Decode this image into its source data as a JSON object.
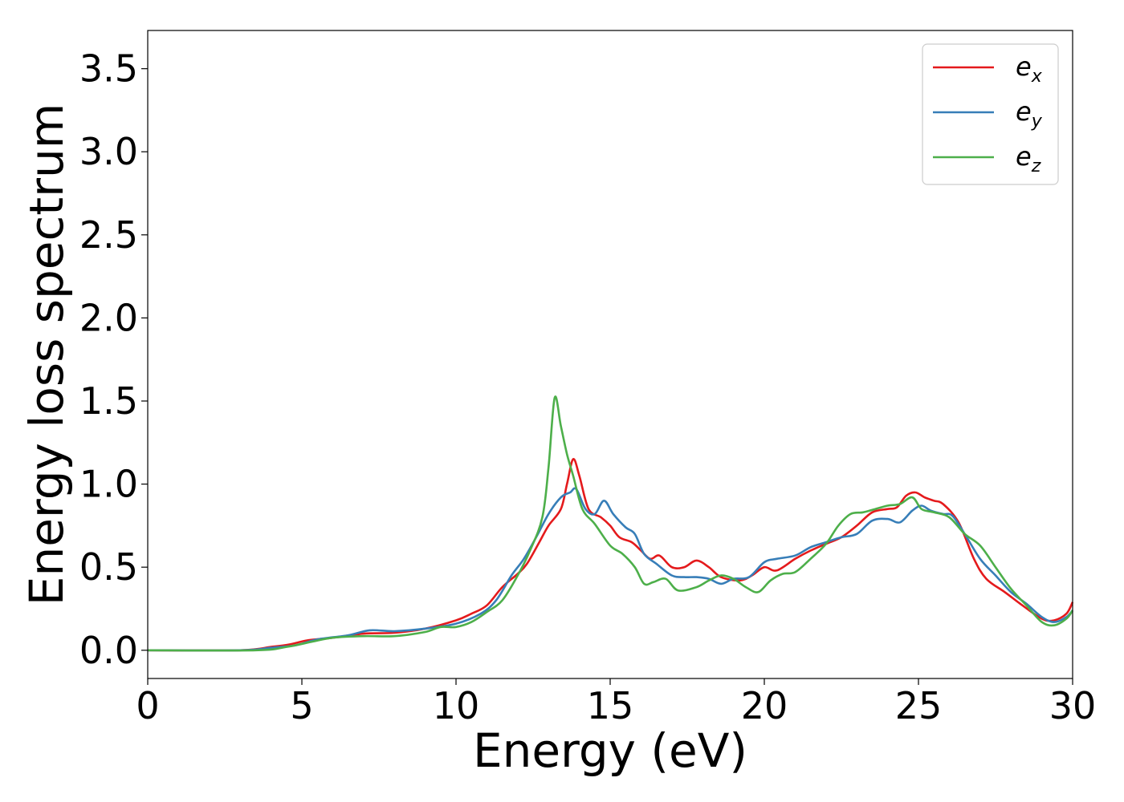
{
  "chart_data": {
    "type": "line",
    "title": "",
    "xlabel": "Energy (eV)",
    "ylabel": "Energy loss spectrum",
    "xlim": [
      0,
      30
    ],
    "ylim": [
      -0.17,
      3.73
    ],
    "xticks": [
      0,
      5,
      10,
      15,
      20,
      25,
      30
    ],
    "xtick_labels": [
      "0",
      "5",
      "10",
      "15",
      "20",
      "25",
      "30"
    ],
    "yticks": [
      0.0,
      0.5,
      1.0,
      1.5,
      2.0,
      2.5,
      3.0,
      3.5
    ],
    "ytick_labels": [
      "0.0",
      "0.5",
      "1.0",
      "1.5",
      "2.0",
      "2.5",
      "3.0",
      "3.5"
    ],
    "grid": false,
    "legend_position": "top-right",
    "series": [
      {
        "name_base": "e",
        "name_sub": "x",
        "color": "#e41a1c",
        "points": [
          [
            0,
            0
          ],
          [
            3,
            0.0
          ],
          [
            4,
            0.02
          ],
          [
            4.6,
            0.035
          ],
          [
            5.2,
            0.06
          ],
          [
            6,
            0.075
          ],
          [
            7,
            0.1
          ],
          [
            8,
            0.105
          ],
          [
            9,
            0.13
          ],
          [
            10,
            0.18
          ],
          [
            10.5,
            0.22
          ],
          [
            11,
            0.27
          ],
          [
            11.5,
            0.38
          ],
          [
            12,
            0.46
          ],
          [
            12.3,
            0.52
          ],
          [
            12.7,
            0.65
          ],
          [
            13,
            0.75
          ],
          [
            13.4,
            0.85
          ],
          [
            13.6,
            1.0
          ],
          [
            13.8,
            1.15
          ],
          [
            14,
            1.05
          ],
          [
            14.3,
            0.85
          ],
          [
            14.7,
            0.8
          ],
          [
            15,
            0.75
          ],
          [
            15.3,
            0.68
          ],
          [
            15.7,
            0.65
          ],
          [
            16,
            0.6
          ],
          [
            16.3,
            0.55
          ],
          [
            16.6,
            0.57
          ],
          [
            17,
            0.5
          ],
          [
            17.4,
            0.5
          ],
          [
            17.8,
            0.54
          ],
          [
            18.2,
            0.5
          ],
          [
            18.6,
            0.44
          ],
          [
            19.2,
            0.42
          ],
          [
            19.6,
            0.45
          ],
          [
            20,
            0.5
          ],
          [
            20.4,
            0.48
          ],
          [
            21,
            0.55
          ],
          [
            21.5,
            0.6
          ],
          [
            22,
            0.64
          ],
          [
            22.5,
            0.68
          ],
          [
            23,
            0.75
          ],
          [
            23.5,
            0.83
          ],
          [
            24,
            0.85
          ],
          [
            24.3,
            0.86
          ],
          [
            24.6,
            0.93
          ],
          [
            24.9,
            0.95
          ],
          [
            25.2,
            0.92
          ],
          [
            25.5,
            0.9
          ],
          [
            25.8,
            0.88
          ],
          [
            26.3,
            0.77
          ],
          [
            26.8,
            0.55
          ],
          [
            27.2,
            0.43
          ],
          [
            27.8,
            0.35
          ],
          [
            28.3,
            0.28
          ],
          [
            29,
            0.19
          ],
          [
            29.4,
            0.18
          ],
          [
            29.8,
            0.22
          ],
          [
            30,
            0.29
          ]
        ]
      },
      {
        "name_base": "e",
        "name_sub": "y",
        "color": "#377eb8",
        "points": [
          [
            0,
            0
          ],
          [
            3,
            0.0
          ],
          [
            4,
            0.015
          ],
          [
            4.8,
            0.03
          ],
          [
            5.5,
            0.065
          ],
          [
            6.5,
            0.09
          ],
          [
            7.2,
            0.12
          ],
          [
            8,
            0.115
          ],
          [
            9,
            0.13
          ],
          [
            10,
            0.16
          ],
          [
            10.8,
            0.22
          ],
          [
            11.3,
            0.3
          ],
          [
            11.8,
            0.45
          ],
          [
            12.2,
            0.55
          ],
          [
            12.6,
            0.68
          ],
          [
            13,
            0.82
          ],
          [
            13.4,
            0.92
          ],
          [
            13.7,
            0.95
          ],
          [
            13.9,
            0.97
          ],
          [
            14.2,
            0.85
          ],
          [
            14.5,
            0.82
          ],
          [
            14.8,
            0.9
          ],
          [
            15.1,
            0.82
          ],
          [
            15.5,
            0.74
          ],
          [
            15.8,
            0.7
          ],
          [
            16.1,
            0.58
          ],
          [
            16.5,
            0.52
          ],
          [
            17,
            0.45
          ],
          [
            17.4,
            0.44
          ],
          [
            17.8,
            0.44
          ],
          [
            18.2,
            0.43
          ],
          [
            18.6,
            0.4
          ],
          [
            19,
            0.43
          ],
          [
            19.5,
            0.44
          ],
          [
            20,
            0.53
          ],
          [
            20.4,
            0.55
          ],
          [
            21,
            0.57
          ],
          [
            21.5,
            0.62
          ],
          [
            22,
            0.65
          ],
          [
            22.5,
            0.68
          ],
          [
            23,
            0.7
          ],
          [
            23.5,
            0.78
          ],
          [
            24,
            0.79
          ],
          [
            24.4,
            0.77
          ],
          [
            24.8,
            0.84
          ],
          [
            25.1,
            0.87
          ],
          [
            25.4,
            0.84
          ],
          [
            25.8,
            0.82
          ],
          [
            26.1,
            0.81
          ],
          [
            26.5,
            0.7
          ],
          [
            27,
            0.55
          ],
          [
            27.5,
            0.45
          ],
          [
            28,
            0.35
          ],
          [
            28.5,
            0.28
          ],
          [
            29,
            0.2
          ],
          [
            29.4,
            0.17
          ],
          [
            29.8,
            0.2
          ],
          [
            30,
            0.24
          ]
        ]
      },
      {
        "name_base": "e",
        "name_sub": "z",
        "color": "#4daf4a",
        "points": [
          [
            0,
            0
          ],
          [
            3.5,
            0.0
          ],
          [
            4.5,
            0.02
          ],
          [
            5.3,
            0.05
          ],
          [
            6,
            0.075
          ],
          [
            7,
            0.085
          ],
          [
            8,
            0.085
          ],
          [
            9,
            0.11
          ],
          [
            9.5,
            0.14
          ],
          [
            10,
            0.14
          ],
          [
            10.5,
            0.17
          ],
          [
            11,
            0.23
          ],
          [
            11.5,
            0.3
          ],
          [
            12,
            0.45
          ],
          [
            12.4,
            0.6
          ],
          [
            12.8,
            0.8
          ],
          [
            13,
            1.1
          ],
          [
            13.2,
            1.52
          ],
          [
            13.4,
            1.35
          ],
          [
            13.6,
            1.18
          ],
          [
            13.8,
            1.05
          ],
          [
            14.1,
            0.85
          ],
          [
            14.5,
            0.76
          ],
          [
            15,
            0.63
          ],
          [
            15.4,
            0.58
          ],
          [
            15.8,
            0.5
          ],
          [
            16.1,
            0.4
          ],
          [
            16.4,
            0.41
          ],
          [
            16.8,
            0.43
          ],
          [
            17.2,
            0.36
          ],
          [
            17.8,
            0.38
          ],
          [
            18.2,
            0.42
          ],
          [
            18.6,
            0.45
          ],
          [
            19,
            0.43
          ],
          [
            19.4,
            0.38
          ],
          [
            19.8,
            0.35
          ],
          [
            20.2,
            0.42
          ],
          [
            20.6,
            0.46
          ],
          [
            21,
            0.47
          ],
          [
            21.5,
            0.55
          ],
          [
            22,
            0.64
          ],
          [
            22.4,
            0.75
          ],
          [
            22.8,
            0.82
          ],
          [
            23.2,
            0.83
          ],
          [
            23.6,
            0.85
          ],
          [
            24,
            0.87
          ],
          [
            24.4,
            0.88
          ],
          [
            24.8,
            0.92
          ],
          [
            25.1,
            0.85
          ],
          [
            25.5,
            0.83
          ],
          [
            26,
            0.8
          ],
          [
            26.5,
            0.7
          ],
          [
            27,
            0.63
          ],
          [
            27.5,
            0.5
          ],
          [
            28,
            0.37
          ],
          [
            28.5,
            0.27
          ],
          [
            29,
            0.17
          ],
          [
            29.4,
            0.15
          ],
          [
            29.8,
            0.19
          ],
          [
            30,
            0.24
          ]
        ]
      }
    ]
  }
}
